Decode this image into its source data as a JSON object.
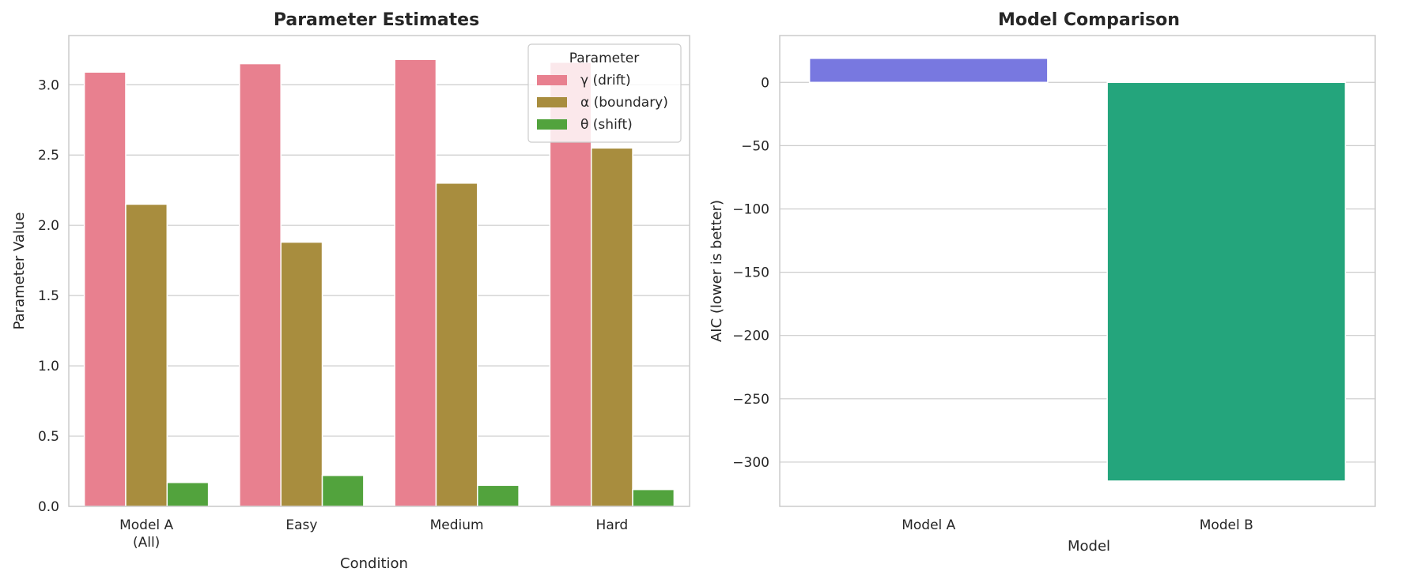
{
  "chart_data": [
    {
      "type": "bar",
      "title": "Parameter Estimates",
      "xlabel": "Condition",
      "ylabel": "Parameter Value",
      "categories": [
        [
          "Model A",
          "(All)"
        ],
        [
          "Easy"
        ],
        [
          "Medium"
        ],
        [
          "Hard"
        ]
      ],
      "ylim": [
        0,
        3.35
      ],
      "yticks": [
        0.0,
        0.5,
        1.0,
        1.5,
        2.0,
        2.5,
        3.0
      ],
      "ytick_labels": [
        "0.0",
        "0.5",
        "1.0",
        "1.5",
        "2.0",
        "2.5",
        "3.0"
      ],
      "grid": "y",
      "legend": {
        "title": "Parameter",
        "placement": "top-right"
      },
      "series": [
        {
          "name": "γ (drift)",
          "color": "#e8808f",
          "values": [
            3.09,
            3.15,
            3.18,
            3.16
          ]
        },
        {
          "name": "α (boundary)",
          "color": "#a88d3e",
          "values": [
            2.15,
            1.88,
            2.3,
            2.55
          ]
        },
        {
          "name": "θ (shift)",
          "color": "#52a33d",
          "values": [
            0.17,
            0.22,
            0.15,
            0.12
          ]
        }
      ]
    },
    {
      "type": "bar",
      "title": "Model Comparison",
      "xlabel": "Model",
      "ylabel": "AIC (lower is better)",
      "categories": [
        [
          "Model A"
        ],
        [
          "Model B"
        ]
      ],
      "ylim": [
        -335,
        37
      ],
      "yticks": [
        0,
        -50,
        -100,
        -150,
        -200,
        -250,
        -300
      ],
      "ytick_labels": [
        "0",
        "−50",
        "−100",
        "−150",
        "−200",
        "−250",
        "−300"
      ],
      "grid": "y",
      "colors": [
        "#7878e0",
        "#24a57c"
      ],
      "values": [
        19,
        -315
      ]
    }
  ]
}
